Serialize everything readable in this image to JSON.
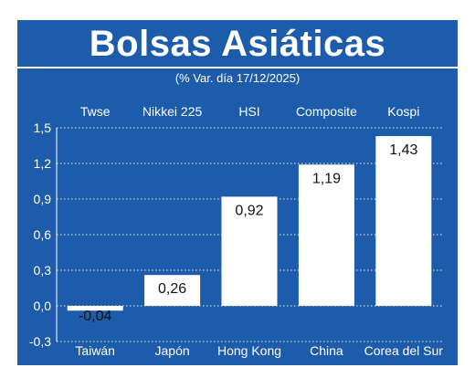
{
  "header": {
    "title": "Bolsas Asiáticas",
    "subtitle": "(% Var. día  17/12/2025)"
  },
  "colors": {
    "background": "#1d5cab",
    "bar": "#ffffff",
    "text": "#ffffff",
    "label_text": "#111111"
  },
  "chart_data": {
    "type": "bar",
    "title": "Bolsas Asiáticas",
    "subtitle": "(% Var. día  17/12/2025)",
    "categories": [
      "Taiwán",
      "Japón",
      "Hong Kong",
      "China",
      "Corea del Sur"
    ],
    "index_names": [
      "Twse",
      "Nikkei 225",
      "HSI",
      "Composite",
      "Kospi"
    ],
    "values": [
      -0.04,
      0.26,
      0.92,
      1.19,
      1.43
    ],
    "value_labels": [
      "-0,04",
      "0,26",
      "0,92",
      "1,19",
      "1,43"
    ],
    "ylim": [
      -0.3,
      1.5
    ],
    "yticks": [
      1.5,
      1.2,
      0.9,
      0.6,
      0.3,
      0.0,
      -0.3
    ],
    "ytick_labels": [
      "1,5",
      "1,2",
      "0,9",
      "0,6",
      "0,3",
      "0,0",
      "-0,3"
    ],
    "grid": true
  }
}
